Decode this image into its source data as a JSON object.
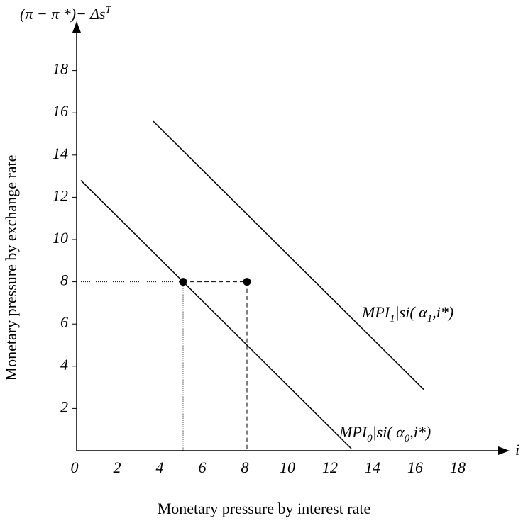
{
  "chart_data": {
    "type": "line",
    "y_axis_symbol": [
      {
        "text": "(π − π *)− Δs"
      },
      {
        "text": "T",
        "sup": true
      }
    ],
    "x_axis_symbol": "i",
    "y_axis_label": "Monetary pressure by exchange rate",
    "x_axis_label": "Monetary pressure by interest rate",
    "xlim": [
      0,
      20
    ],
    "ylim": [
      0,
      20
    ],
    "xticks": [
      0,
      2,
      4,
      6,
      8,
      10,
      12,
      14,
      16,
      18
    ],
    "yticks": [
      2,
      4,
      6,
      8,
      10,
      12,
      14,
      16,
      18
    ],
    "color": "#000000",
    "series": [
      {
        "x": [
          0.2,
          12.9
        ],
        "values": [
          12.8,
          0.1
        ],
        "label": [
          {
            "text": "MPI"
          },
          {
            "text": "0",
            "sub": true
          },
          {
            "text": "|si( "
          },
          {
            "text": "α"
          },
          {
            "text": "0",
            "sub": true
          },
          {
            "text": ",i*)"
          }
        ]
      },
      {
        "x": [
          3.6,
          16.3
        ],
        "values": [
          15.6,
          2.9
        ],
        "label": [
          {
            "text": "MPI"
          },
          {
            "text": "1",
            "sub": true
          },
          {
            "text": "|si( "
          },
          {
            "text": "α"
          },
          {
            "text": "1",
            "sub": true
          },
          {
            "text": ",i*)"
          }
        ]
      }
    ],
    "points": {
      "x": [
        5,
        8
      ],
      "values": [
        8,
        8
      ]
    }
  }
}
